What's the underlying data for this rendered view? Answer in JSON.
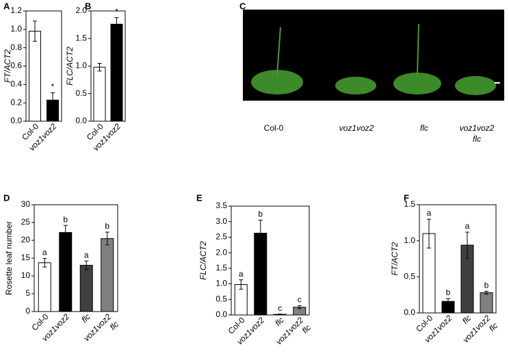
{
  "chart_data": [
    {
      "type": "bar",
      "label": "A",
      "ylabel": "FT/ACT2",
      "categories": [
        "Col-0",
        "voz1voz2"
      ],
      "values": [
        0.98,
        0.23
      ],
      "errors": [
        0.11,
        0.08
      ],
      "annotations": [
        null,
        "*"
      ],
      "colors": [
        "#ffffff",
        "#000000"
      ],
      "ylim": [
        0,
        1.2
      ],
      "yticks": [
        {
          "value": 0,
          "label": "0.0"
        },
        0.2,
        0.4,
        0.6,
        0.8,
        {
          "value": 1,
          "label": "1.0"
        },
        1.2
      ]
    },
    {
      "type": "bar",
      "label": "B",
      "ylabel": "FLC/ACT2",
      "categories": [
        "Col-0",
        "voz1voz2"
      ],
      "values": [
        0.98,
        1.76
      ],
      "errors": [
        0.07,
        0.12
      ],
      "annotations": [
        null,
        "*"
      ],
      "colors": [
        "#ffffff",
        "#000000"
      ],
      "ylim": [
        0,
        2
      ],
      "yticks": [
        {
          "value": 0,
          "label": "0.0"
        },
        0.5,
        {
          "value": 1,
          "label": "1.0"
        },
        1.5,
        {
          "value": 2,
          "label": "2.0"
        }
      ]
    },
    {
      "type": "image",
      "label": "C",
      "categories": [
        [
          "Col-0"
        ],
        [
          "voz1voz2"
        ],
        [
          "flc"
        ],
        [
          "voz1voz2",
          "flc"
        ]
      ]
    },
    {
      "type": "bar",
      "label": "D",
      "ylabel": "Rosette leaf number",
      "categories": [
        [
          "Col-0"
        ],
        [
          "voz1voz2"
        ],
        [
          "flc"
        ],
        [
          "voz1voz2",
          "flc"
        ]
      ],
      "values": [
        13.7,
        22.2,
        13.0,
        20.5
      ],
      "errors": [
        1.2,
        2.0,
        1.2,
        1.8
      ],
      "annotations": [
        "a",
        "b",
        "a",
        "b"
      ],
      "colors": [
        "#ffffff",
        "#000000",
        "#404040",
        "#808080"
      ],
      "ylim": [
        0,
        30
      ],
      "yticks": [
        0,
        5,
        10,
        15,
        20,
        25,
        30
      ]
    },
    {
      "type": "bar",
      "label": "E",
      "ylabel": "FLC/ACT2",
      "categories": [
        [
          "Col-0"
        ],
        [
          "voz1voz2"
        ],
        [
          "flc"
        ],
        [
          "voz1voz2",
          "flc"
        ]
      ],
      "values": [
        0.98,
        2.63,
        0.02,
        0.25
      ],
      "errors": [
        0.15,
        0.42,
        0.01,
        0.05
      ],
      "annotations": [
        "a",
        "b",
        "c",
        "c"
      ],
      "colors": [
        "#ffffff",
        "#000000",
        "#404040",
        "#808080"
      ],
      "ylim": [
        0,
        3.5
      ],
      "yticks": [
        {
          "value": 0,
          "label": "0.0"
        },
        0.5,
        {
          "value": 1,
          "label": "1.0"
        },
        1.5,
        {
          "value": 2,
          "label": "2.0"
        },
        2.5,
        {
          "value": 3,
          "label": "3.0"
        },
        3.5
      ]
    },
    {
      "type": "bar",
      "label": "F",
      "ylabel": "FT/ACT2",
      "categories": [
        [
          "Col-0"
        ],
        [
          "voz1voz2"
        ],
        [
          "flc"
        ],
        [
          "voz1voz2",
          "flc"
        ]
      ],
      "values": [
        1.1,
        0.16,
        0.94,
        0.28
      ],
      "errors": [
        0.2,
        0.04,
        0.18,
        0.02
      ],
      "annotations": [
        "a",
        "b",
        "a",
        "b"
      ],
      "colors": [
        "#ffffff",
        "#000000",
        "#404040",
        "#808080"
      ],
      "ylim": [
        0,
        1.5
      ],
      "yticks": [
        {
          "value": 0,
          "label": "0.0"
        },
        0.5,
        {
          "value": 1,
          "label": "1.0"
        },
        1.5
      ]
    }
  ]
}
